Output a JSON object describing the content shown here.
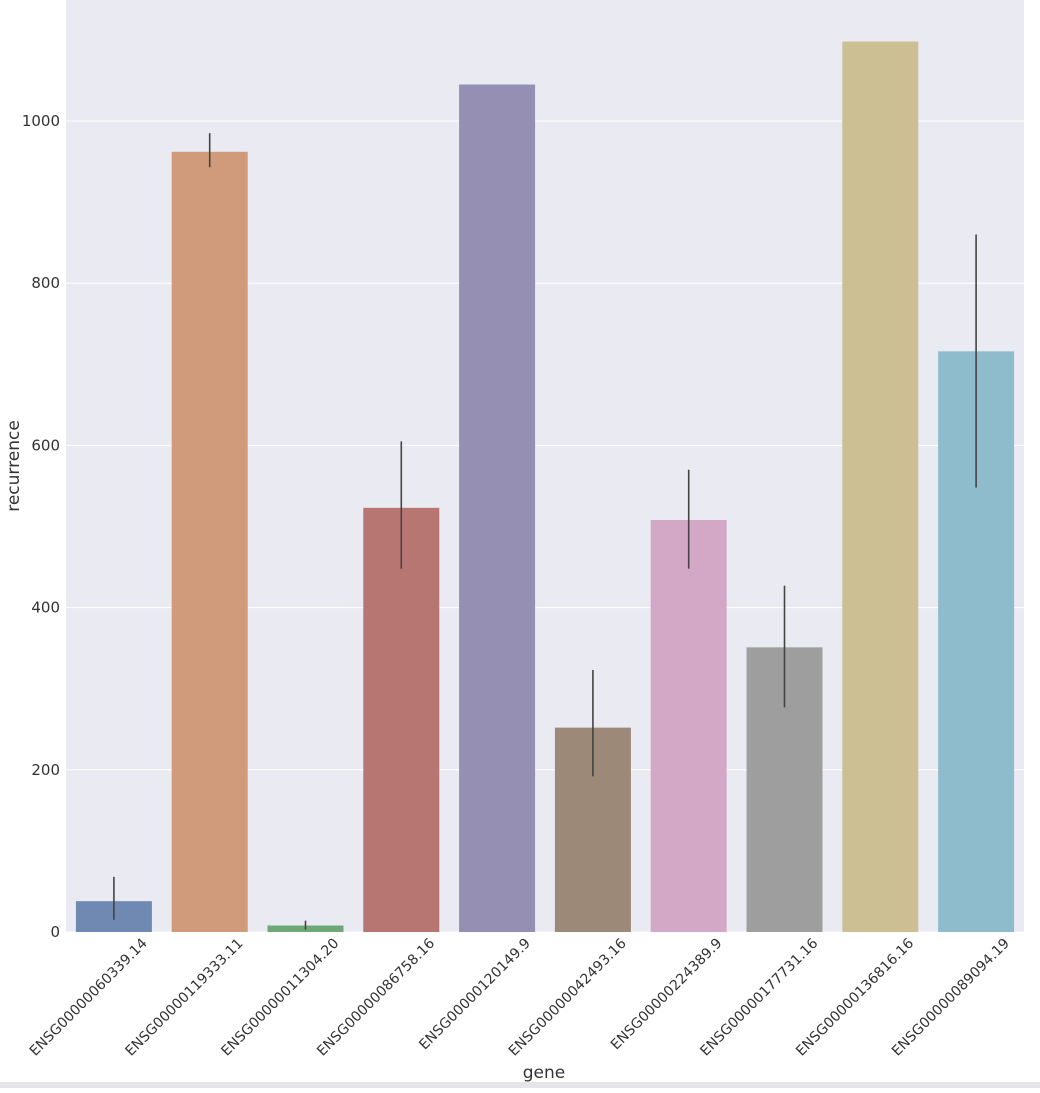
{
  "chart_data": {
    "type": "bar",
    "xlabel": "gene",
    "ylabel": "recurrence",
    "categories": [
      "ENSG00000060339.14",
      "ENSG00000119333.11",
      "ENSG00000011304.20",
      "ENSG00000086758.16",
      "ENSG00000120149.9",
      "ENSG00000042493.16",
      "ENSG00000224389.9",
      "ENSG00000177731.16",
      "ENSG00000136816.16",
      "ENSG00000089094.19"
    ],
    "values": [
      38,
      962,
      8,
      523,
      1045,
      252,
      508,
      351,
      1098,
      716
    ],
    "error_low": [
      15,
      943,
      3,
      448,
      null,
      192,
      448,
      277,
      null,
      548
    ],
    "error_high": [
      68,
      985,
      14,
      605,
      null,
      323,
      570,
      427,
      null,
      860
    ],
    "colors": [
      "#6f89b3",
      "#cf9b7a",
      "#6fa877",
      "#b87673",
      "#958fb4",
      "#9d8978",
      "#d3a8c6",
      "#9e9e9e",
      "#ccbf94",
      "#8fbccc"
    ],
    "yticks": [
      0,
      200,
      400,
      600,
      800,
      1000
    ],
    "ylim": [
      0,
      1150
    ],
    "grid": true,
    "background": "#eaeaf2"
  }
}
